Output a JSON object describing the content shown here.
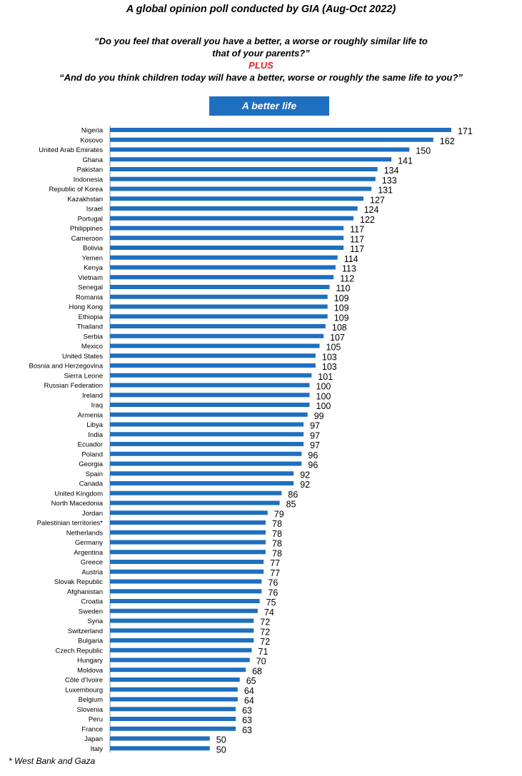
{
  "header": {
    "title": "A global opinion poll conducted by GIA (Aug-Oct 2022)",
    "question_line1": "“Do you feel that overall you have a better, a worse or roughly similar life to",
    "question_line2": "that of your parents?”",
    "plus": "PLUS",
    "question_line3": "“And do you think children today will have a better, worse or roughly the same life to you?”"
  },
  "footnote": "* West Bank and Gaza",
  "colors": {
    "bar": "#1f6fbf",
    "legend_bg": "#1f6fbf",
    "plus": "#e41c23"
  },
  "chart_data": {
    "type": "bar",
    "orientation": "horizontal",
    "legend": [
      "A better life"
    ],
    "categories": [
      "Nigeria",
      "Kosovo",
      "United Arab Emirates",
      "Ghana",
      "Pakistan",
      "Indonesia",
      "Republic of Korea",
      "Kazakhstan",
      "Israel",
      "Portugal",
      "Philippines",
      "Cameroon",
      "Bolivia",
      "Yemen",
      "Kenya",
      "Vietnam",
      "Senegal",
      "Romania",
      "Hong Kong",
      "Ethiopia",
      "Thailand",
      "Serbia",
      "Mexico",
      "United States",
      "Bosnia and Herzegovina",
      "Sierra Leone",
      "Russian Federation",
      "Ireland",
      "Iraq",
      "Armenia",
      "Libya",
      "India",
      "Ecuador",
      "Poland",
      "Georgia",
      "Spain",
      "Canada",
      "United Kingdom",
      "North Macedonia",
      "Jordan",
      "Palestinian territories*",
      "Netherlands",
      "Germany",
      "Argentina",
      "Greece",
      "Austria",
      "Slovak Republic",
      "Afghanistan",
      "Croatia",
      "Sweden",
      "Syria",
      "Switzerland",
      "Bulgaria",
      "Czech Republic",
      "Hungary",
      "Moldova",
      "Côte d'Ivoire",
      "Luxembourg",
      "Belgium",
      "Slovenia",
      "Peru",
      "France",
      "Japan",
      "Italy"
    ],
    "values": [
      171,
      162,
      150,
      141,
      134,
      133,
      131,
      127,
      124,
      122,
      117,
      117,
      117,
      114,
      113,
      112,
      110,
      109,
      109,
      109,
      108,
      107,
      105,
      103,
      103,
      101,
      100,
      100,
      100,
      99,
      97,
      97,
      97,
      96,
      96,
      92,
      92,
      86,
      85,
      79,
      78,
      78,
      78,
      78,
      77,
      77,
      76,
      76,
      75,
      74,
      72,
      72,
      72,
      71,
      70,
      68,
      65,
      64,
      64,
      63,
      63,
      63,
      50,
      50
    ],
    "xlim": [
      0,
      171
    ]
  }
}
